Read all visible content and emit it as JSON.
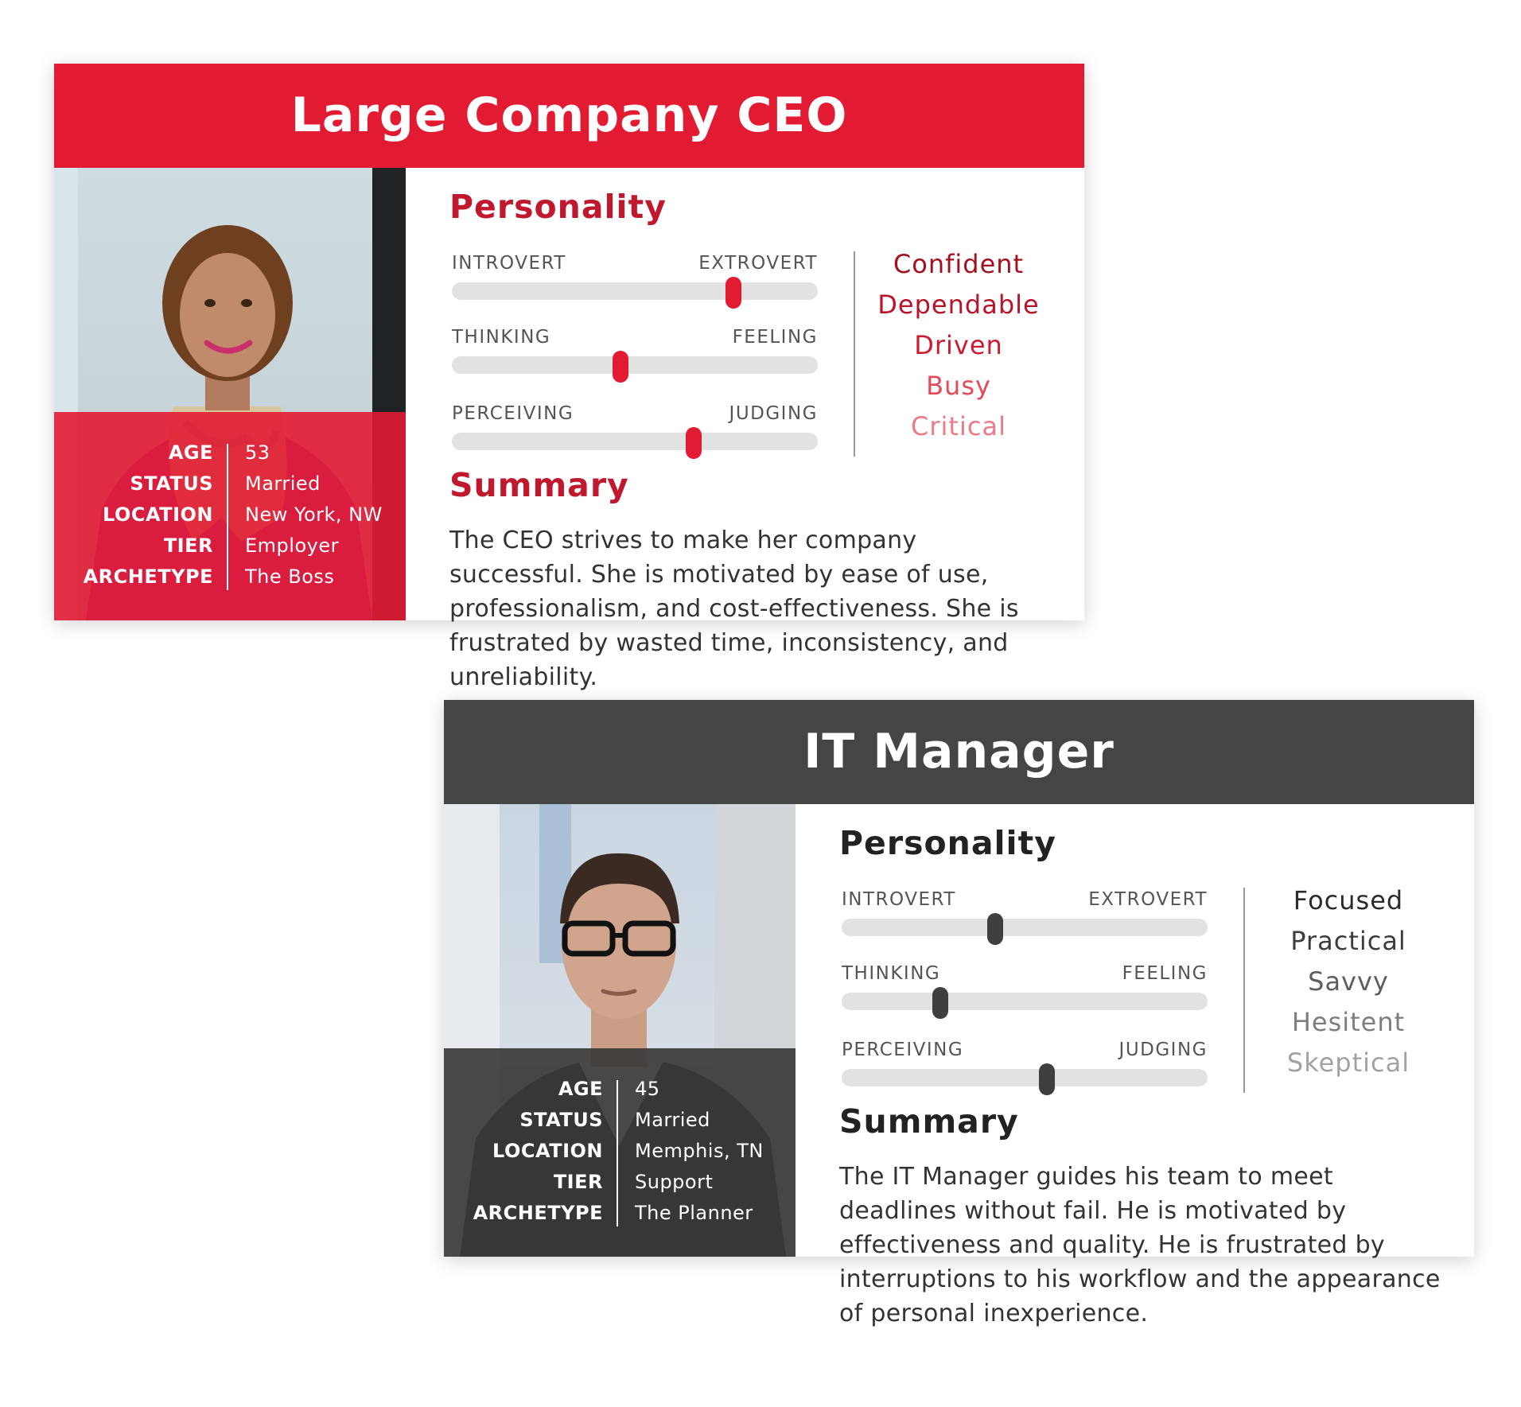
{
  "cards": [
    {
      "title": "Large Company CEO",
      "personality_heading": "Personality",
      "sliders": [
        {
          "left": "INTROVERT",
          "right": "EXTROVERT",
          "level": 0.77
        },
        {
          "left": "THINKING",
          "right": "FEELING",
          "level": 0.46
        },
        {
          "left": "PERCEIVING",
          "right": "JUDGING",
          "level": 0.66
        }
      ],
      "traits": [
        "Confident",
        "Dependable",
        "Driven",
        "Busy",
        "Critical"
      ],
      "summary_heading": "Summary",
      "summary": "The CEO strives to make her company successful.  She is motivated by ease of use, professionalism, and cost-effectiveness.  She is frustrated by wasted time, inconsistency, and unreliability.",
      "info": [
        {
          "key": "AGE",
          "value": "53"
        },
        {
          "key": "STATUS",
          "value": "Married"
        },
        {
          "key": "LOCATION",
          "value": "New York, NW"
        },
        {
          "key": "TIER",
          "value": "Employer"
        },
        {
          "key": "ARCHETYPE",
          "value": "The Boss"
        }
      ],
      "colors": {
        "accent": "#e21b33",
        "traits": [
          "#a5101f",
          "#b8132a",
          "#cc1a30",
          "#e44a5a",
          "#ee7a86"
        ]
      }
    },
    {
      "title": "IT Manager",
      "personality_heading": "Personality",
      "sliders": [
        {
          "left": "INTROVERT",
          "right": "EXTROVERT",
          "level": 0.42
        },
        {
          "left": "THINKING",
          "right": "FEELING",
          "level": 0.27
        },
        {
          "left": "PERCEIVING",
          "right": "JUDGING",
          "level": 0.56
        }
      ],
      "traits": [
        "Focused",
        "Practical",
        "Savvy",
        "Hesitent",
        "Skeptical"
      ],
      "summary_heading": "Summary",
      "summary": "The IT Manager guides his team to meet deadlines without fail.  He is motivated by effectiveness and quality.  He is frustrated by interruptions to his workflow and the appearance of personal inexperience.",
      "info": [
        {
          "key": "AGE",
          "value": "45"
        },
        {
          "key": "STATUS",
          "value": "Married"
        },
        {
          "key": "LOCATION",
          "value": "Memphis, TN"
        },
        {
          "key": "TIER",
          "value": "Support"
        },
        {
          "key": "ARCHETYPE",
          "value": "The Planner"
        }
      ],
      "colors": {
        "accent": "#454545",
        "traits": [
          "#2b2b2b",
          "#3c3c3c",
          "#5e5e5e",
          "#7e7e7e",
          "#a2a2a2"
        ]
      }
    }
  ]
}
